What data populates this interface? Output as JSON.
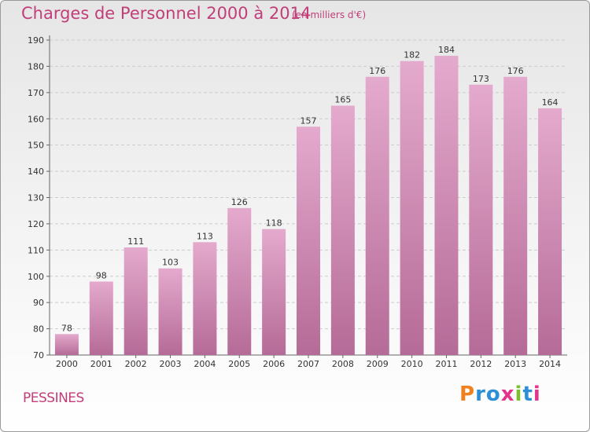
{
  "header": {
    "title": "Charges de Personnel 2000 à 2014",
    "unit": "(en milliers d'€)"
  },
  "footer": {
    "place": "PESSINES",
    "brand": "Proxiti"
  },
  "colors": {
    "title": "#c13e79",
    "bar_top": "#e4aacd",
    "bar_bottom": "#b56b97",
    "grid": "#cccccc",
    "brand_letters": [
      "#f0821e",
      "#2d8fd6",
      "#2d8fd6",
      "#e3348b",
      "#7cbf2c",
      "#2d8fd6",
      "#e3348b"
    ]
  },
  "chart_data": {
    "type": "bar",
    "title": "Charges de Personnel 2000 à 2014",
    "categories": [
      "2000",
      "2001",
      "2002",
      "2003",
      "2004",
      "2005",
      "2006",
      "2007",
      "2008",
      "2009",
      "2010",
      "2011",
      "2012",
      "2013",
      "2014"
    ],
    "values": [
      78,
      98,
      111,
      103,
      113,
      126,
      118,
      157,
      165,
      176,
      182,
      184,
      173,
      176,
      164
    ],
    "ylim": [
      70,
      190
    ],
    "yticks": [
      70,
      80,
      90,
      100,
      110,
      120,
      130,
      140,
      150,
      160,
      170,
      180,
      190
    ],
    "grid": true,
    "data_labels": true
  }
}
